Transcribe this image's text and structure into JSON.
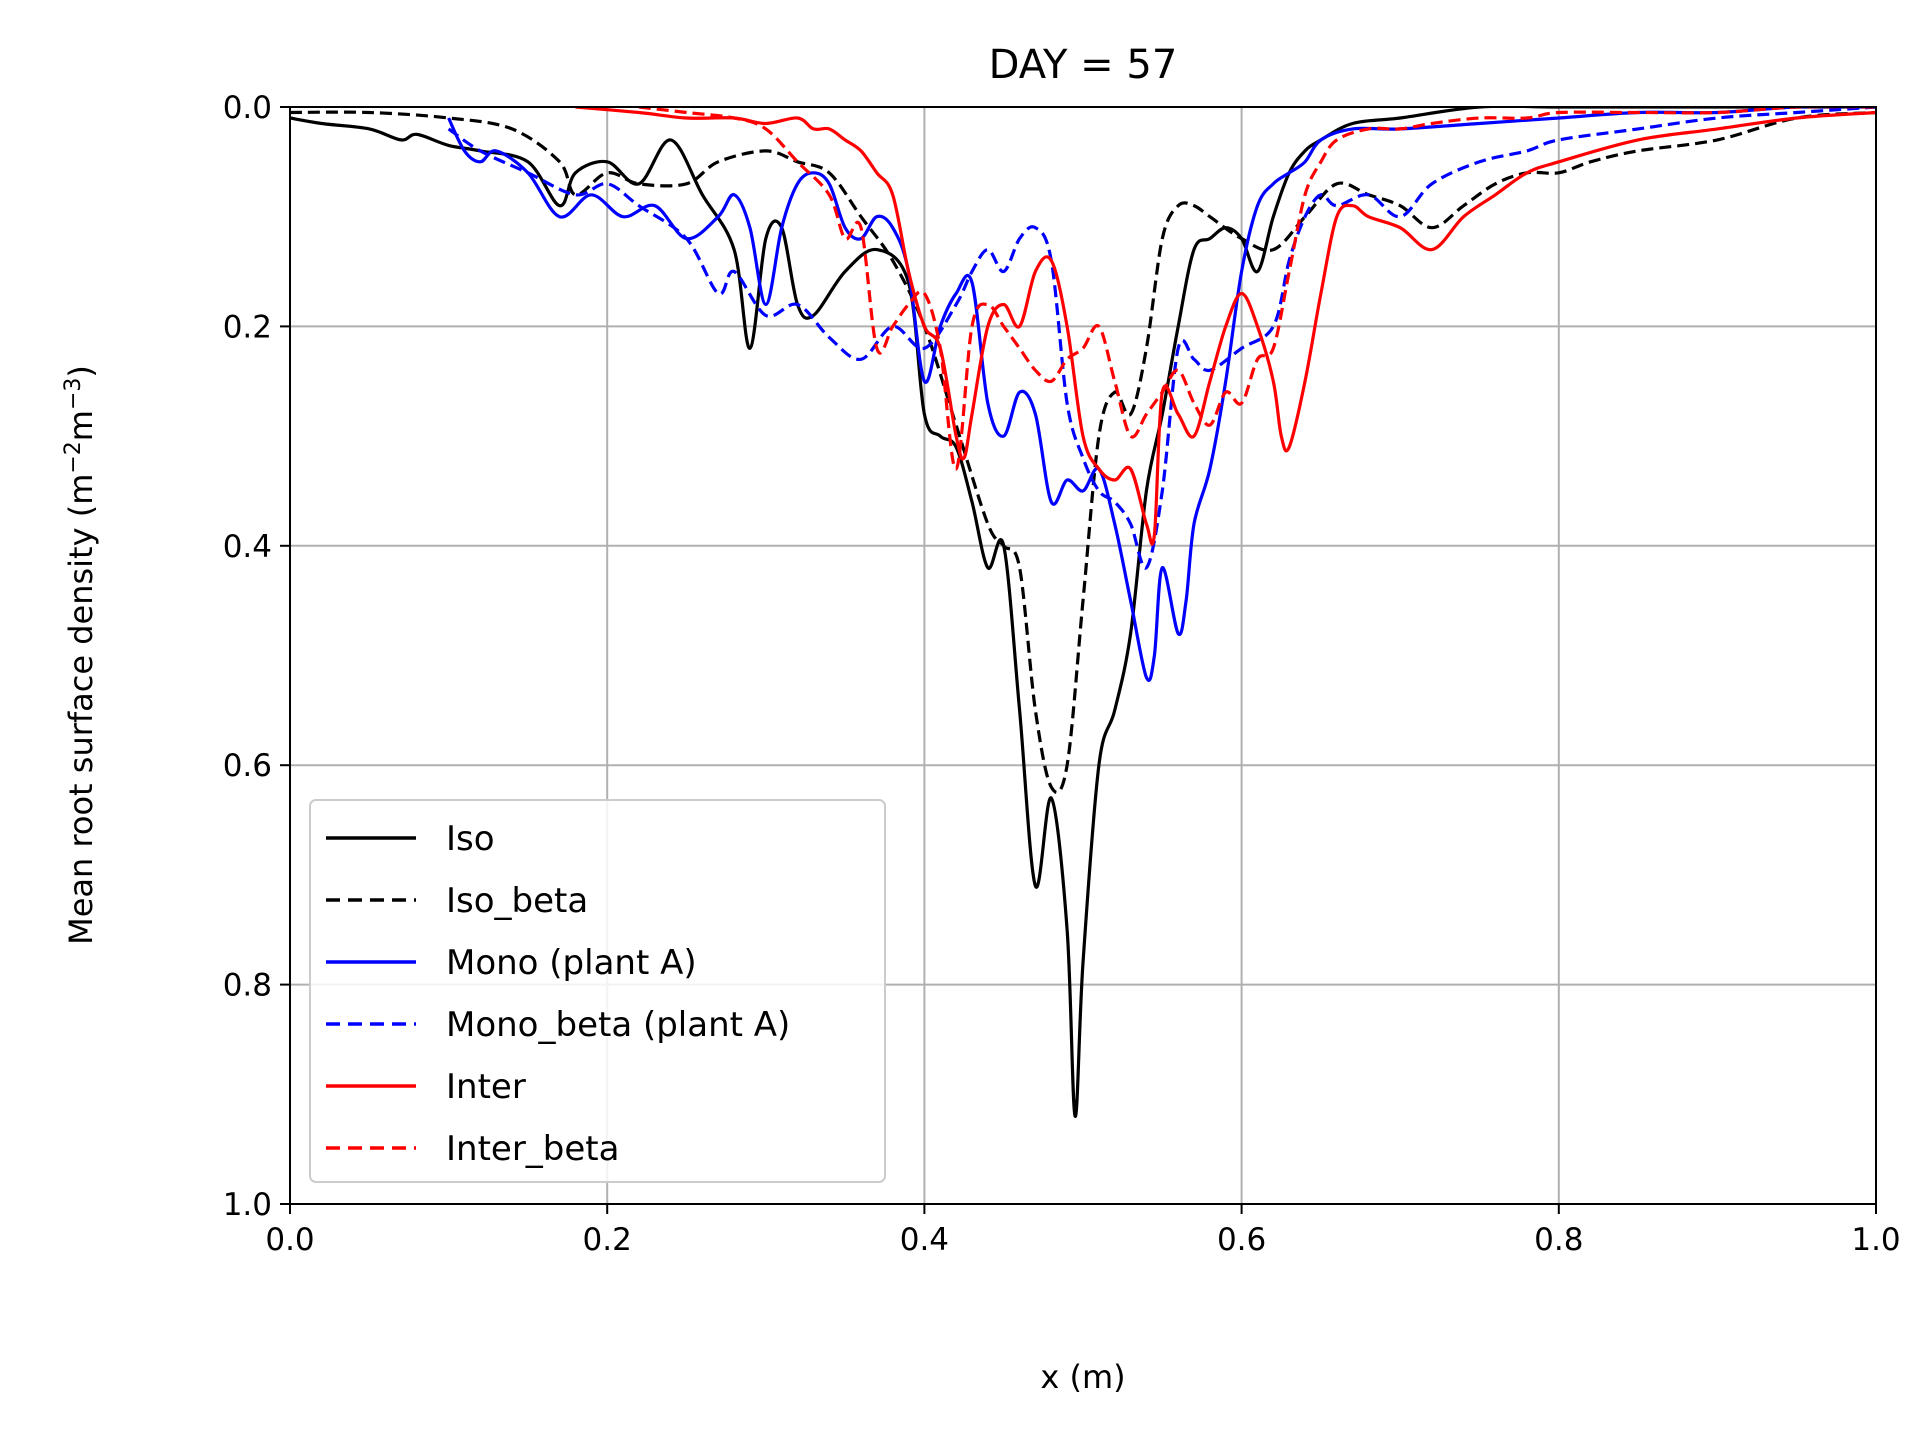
{
  "chart_data": {
    "type": "line",
    "title": "DAY = 57",
    "xlabel": "x (m)",
    "ylabel_main": "Mean root surface density (m",
    "ylabel_sup1": "−2",
    "ylabel_mid": "m",
    "ylabel_sup2": "−3",
    "ylabel_end": ")",
    "xlim": [
      0.0,
      1.0
    ],
    "ylim": [
      0.0,
      1.0
    ],
    "y_inverted": true,
    "grid": true,
    "legend_position": "lower-left",
    "xticks": [
      "0.0",
      "0.2",
      "0.4",
      "0.6",
      "0.8",
      "1.0"
    ],
    "yticks": [
      "0.0",
      "0.2",
      "0.4",
      "0.6",
      "0.8",
      "1.0"
    ],
    "series": [
      {
        "name": "Iso",
        "color": "#000000",
        "dash": "solid",
        "x": [
          0.0,
          0.02,
          0.05,
          0.07,
          0.08,
          0.1,
          0.12,
          0.15,
          0.17,
          0.18,
          0.2,
          0.22,
          0.24,
          0.26,
          0.28,
          0.29,
          0.3,
          0.31,
          0.32,
          0.33,
          0.35,
          0.37,
          0.39,
          0.4,
          0.41,
          0.42,
          0.43,
          0.44,
          0.45,
          0.46,
          0.47,
          0.48,
          0.49,
          0.495,
          0.5,
          0.51,
          0.52,
          0.53,
          0.54,
          0.55,
          0.56,
          0.57,
          0.58,
          0.59,
          0.6,
          0.61,
          0.62,
          0.63,
          0.64,
          0.65,
          0.67,
          0.7,
          0.75,
          0.8,
          0.85,
          0.9,
          0.95,
          1.0
        ],
        "y": [
          0.01,
          0.015,
          0.02,
          0.03,
          0.025,
          0.035,
          0.04,
          0.05,
          0.09,
          0.06,
          0.05,
          0.07,
          0.03,
          0.08,
          0.13,
          0.22,
          0.12,
          0.11,
          0.18,
          0.19,
          0.15,
          0.13,
          0.16,
          0.28,
          0.3,
          0.31,
          0.36,
          0.42,
          0.4,
          0.55,
          0.71,
          0.63,
          0.75,
          0.92,
          0.78,
          0.6,
          0.55,
          0.48,
          0.35,
          0.28,
          0.2,
          0.13,
          0.12,
          0.11,
          0.12,
          0.15,
          0.1,
          0.06,
          0.04,
          0.03,
          0.015,
          0.01,
          0.0,
          0.0,
          0.0,
          0.0,
          0.0,
          0.0
        ]
      },
      {
        "name": "Iso_beta",
        "color": "#000000",
        "dash": "dashed",
        "x": [
          0.0,
          0.05,
          0.1,
          0.14,
          0.17,
          0.18,
          0.2,
          0.22,
          0.25,
          0.27,
          0.3,
          0.32,
          0.34,
          0.36,
          0.38,
          0.4,
          0.42,
          0.44,
          0.45,
          0.46,
          0.47,
          0.48,
          0.49,
          0.5,
          0.51,
          0.52,
          0.53,
          0.54,
          0.55,
          0.56,
          0.57,
          0.58,
          0.6,
          0.62,
          0.64,
          0.66,
          0.68,
          0.7,
          0.72,
          0.74,
          0.76,
          0.78,
          0.8,
          0.82,
          0.85,
          0.9,
          0.95,
          1.0
        ],
        "y": [
          0.005,
          0.005,
          0.01,
          0.02,
          0.05,
          0.08,
          0.06,
          0.07,
          0.07,
          0.05,
          0.04,
          0.05,
          0.06,
          0.1,
          0.14,
          0.2,
          0.29,
          0.38,
          0.4,
          0.42,
          0.55,
          0.62,
          0.6,
          0.45,
          0.3,
          0.26,
          0.28,
          0.22,
          0.12,
          0.09,
          0.09,
          0.1,
          0.12,
          0.13,
          0.1,
          0.07,
          0.08,
          0.09,
          0.11,
          0.09,
          0.07,
          0.06,
          0.06,
          0.05,
          0.04,
          0.03,
          0.01,
          0.005
        ]
      },
      {
        "name": "Mono (plant A)",
        "color": "#0000ff",
        "dash": "solid",
        "x": [
          0.1,
          0.11,
          0.12,
          0.13,
          0.15,
          0.17,
          0.19,
          0.21,
          0.23,
          0.25,
          0.27,
          0.28,
          0.29,
          0.3,
          0.31,
          0.32,
          0.33,
          0.34,
          0.35,
          0.36,
          0.37,
          0.38,
          0.39,
          0.4,
          0.41,
          0.42,
          0.43,
          0.44,
          0.45,
          0.46,
          0.47,
          0.48,
          0.49,
          0.5,
          0.51,
          0.52,
          0.53,
          0.54,
          0.545,
          0.55,
          0.56,
          0.565,
          0.57,
          0.58,
          0.59,
          0.6,
          0.61,
          0.62,
          0.63,
          0.64,
          0.65,
          0.67,
          0.7,
          0.75,
          0.8,
          0.85,
          0.9,
          0.95,
          1.0
        ],
        "y": [
          0.01,
          0.04,
          0.05,
          0.04,
          0.06,
          0.1,
          0.08,
          0.1,
          0.09,
          0.12,
          0.1,
          0.08,
          0.11,
          0.18,
          0.11,
          0.07,
          0.06,
          0.07,
          0.11,
          0.12,
          0.1,
          0.11,
          0.15,
          0.25,
          0.2,
          0.17,
          0.16,
          0.27,
          0.3,
          0.26,
          0.28,
          0.36,
          0.34,
          0.35,
          0.33,
          0.38,
          0.45,
          0.52,
          0.5,
          0.42,
          0.48,
          0.45,
          0.38,
          0.33,
          0.25,
          0.15,
          0.09,
          0.07,
          0.06,
          0.05,
          0.03,
          0.02,
          0.02,
          0.015,
          0.01,
          0.005,
          0.005,
          0.0,
          0.0
        ]
      },
      {
        "name": "Mono_beta (plant A)",
        "color": "#0000ff",
        "dash": "dashed",
        "x": [
          0.1,
          0.12,
          0.15,
          0.18,
          0.2,
          0.22,
          0.25,
          0.27,
          0.28,
          0.3,
          0.32,
          0.34,
          0.36,
          0.38,
          0.4,
          0.42,
          0.43,
          0.44,
          0.45,
          0.46,
          0.47,
          0.48,
          0.49,
          0.5,
          0.51,
          0.52,
          0.53,
          0.54,
          0.55,
          0.56,
          0.57,
          0.58,
          0.6,
          0.62,
          0.63,
          0.64,
          0.65,
          0.66,
          0.68,
          0.7,
          0.72,
          0.75,
          0.78,
          0.8,
          0.85,
          0.9,
          0.95,
          1.0
        ],
        "y": [
          0.02,
          0.04,
          0.06,
          0.08,
          0.07,
          0.09,
          0.12,
          0.17,
          0.15,
          0.19,
          0.18,
          0.21,
          0.23,
          0.2,
          0.22,
          0.18,
          0.15,
          0.13,
          0.15,
          0.12,
          0.11,
          0.14,
          0.27,
          0.32,
          0.35,
          0.36,
          0.38,
          0.42,
          0.35,
          0.22,
          0.23,
          0.24,
          0.22,
          0.2,
          0.14,
          0.1,
          0.08,
          0.09,
          0.08,
          0.1,
          0.07,
          0.05,
          0.04,
          0.03,
          0.02,
          0.01,
          0.005,
          0.0
        ]
      },
      {
        "name": "Inter",
        "color": "#ff0000",
        "dash": "solid",
        "x": [
          0.18,
          0.22,
          0.25,
          0.28,
          0.3,
          0.32,
          0.33,
          0.34,
          0.35,
          0.36,
          0.37,
          0.38,
          0.39,
          0.4,
          0.41,
          0.42,
          0.425,
          0.43,
          0.44,
          0.45,
          0.46,
          0.47,
          0.48,
          0.49,
          0.5,
          0.51,
          0.52,
          0.53,
          0.54,
          0.545,
          0.55,
          0.56,
          0.57,
          0.58,
          0.59,
          0.6,
          0.61,
          0.62,
          0.625,
          0.63,
          0.64,
          0.65,
          0.66,
          0.67,
          0.68,
          0.7,
          0.72,
          0.74,
          0.76,
          0.78,
          0.8,
          0.85,
          0.9,
          0.95,
          1.0
        ],
        "y": [
          0.0,
          0.005,
          0.01,
          0.01,
          0.015,
          0.01,
          0.02,
          0.02,
          0.03,
          0.04,
          0.06,
          0.08,
          0.15,
          0.2,
          0.22,
          0.3,
          0.32,
          0.28,
          0.2,
          0.18,
          0.2,
          0.15,
          0.14,
          0.2,
          0.3,
          0.33,
          0.34,
          0.33,
          0.38,
          0.39,
          0.26,
          0.28,
          0.3,
          0.25,
          0.2,
          0.17,
          0.2,
          0.25,
          0.3,
          0.31,
          0.25,
          0.17,
          0.1,
          0.09,
          0.1,
          0.11,
          0.13,
          0.1,
          0.08,
          0.06,
          0.05,
          0.03,
          0.02,
          0.01,
          0.005
        ]
      },
      {
        "name": "Inter_beta",
        "color": "#ff0000",
        "dash": "dashed",
        "x": [
          0.22,
          0.25,
          0.28,
          0.3,
          0.32,
          0.34,
          0.35,
          0.36,
          0.37,
          0.38,
          0.39,
          0.4,
          0.41,
          0.42,
          0.43,
          0.44,
          0.45,
          0.46,
          0.47,
          0.48,
          0.49,
          0.5,
          0.51,
          0.52,
          0.53,
          0.54,
          0.55,
          0.56,
          0.57,
          0.58,
          0.59,
          0.6,
          0.61,
          0.62,
          0.63,
          0.64,
          0.65,
          0.66,
          0.68,
          0.7,
          0.72,
          0.75,
          0.78,
          0.8,
          0.85,
          0.9,
          0.95,
          1.0
        ],
        "y": [
          0.0,
          0.005,
          0.01,
          0.02,
          0.05,
          0.08,
          0.12,
          0.11,
          0.22,
          0.2,
          0.18,
          0.17,
          0.22,
          0.33,
          0.2,
          0.18,
          0.2,
          0.22,
          0.24,
          0.25,
          0.23,
          0.22,
          0.2,
          0.25,
          0.3,
          0.28,
          0.26,
          0.24,
          0.27,
          0.29,
          0.26,
          0.27,
          0.23,
          0.22,
          0.15,
          0.08,
          0.05,
          0.03,
          0.02,
          0.02,
          0.015,
          0.01,
          0.01,
          0.005,
          0.005,
          0.005,
          0.0,
          0.0
        ]
      }
    ]
  }
}
